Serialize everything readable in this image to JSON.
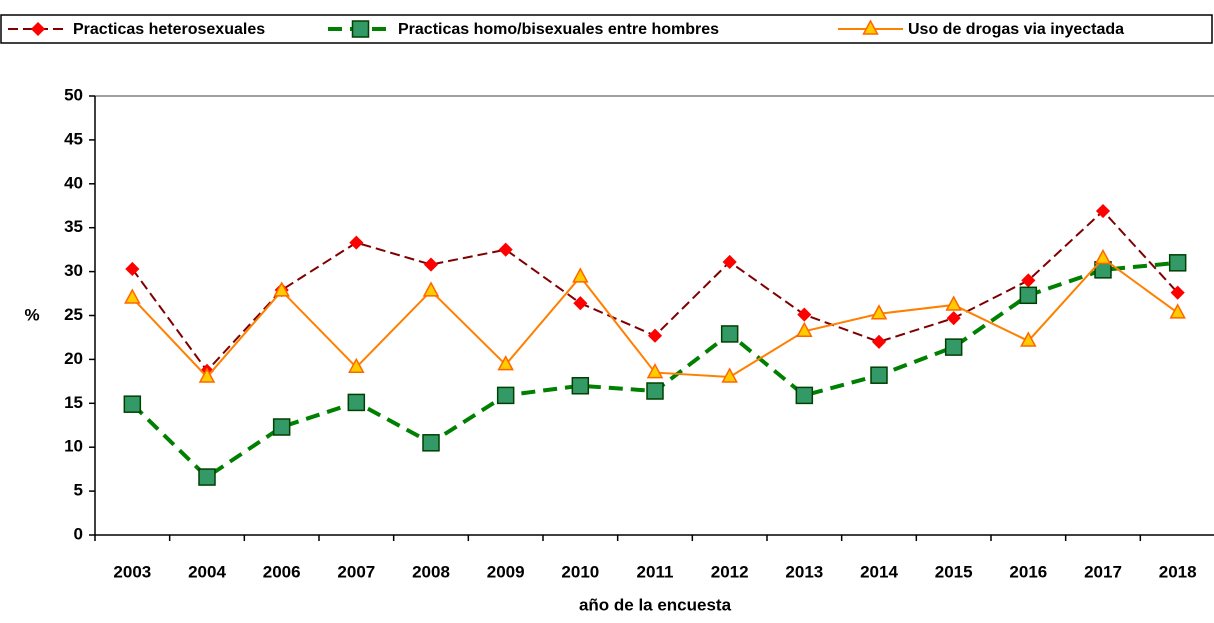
{
  "chart_data": {
    "type": "line",
    "x_label": "año de la encuesta",
    "y_label": "%",
    "categories": [
      "2003",
      "2004",
      "2006",
      "2007",
      "2008",
      "2009",
      "2010",
      "2011",
      "2012",
      "2013",
      "2014",
      "2015",
      "2016",
      "2017",
      "2018"
    ],
    "series": [
      {
        "name": "Practicas heterosexuales",
        "color": "#800000",
        "marker_color": "#ff0000",
        "marker": "diamond",
        "dash": true,
        "width": 2,
        "values": [
          30.3,
          18.7,
          27.9,
          33.3,
          30.8,
          32.5,
          26.4,
          22.7,
          31.1,
          25.1,
          22.0,
          24.7,
          29.0,
          36.9,
          27.6
        ]
      },
      {
        "name": "Practicas homo/bisexuales entre hombres",
        "color": "#008000",
        "marker_color": "#339966",
        "marker": "square",
        "dash": true,
        "width": 4,
        "values": [
          14.9,
          6.6,
          12.3,
          15.1,
          10.5,
          15.9,
          17.0,
          16.4,
          22.9,
          15.9,
          18.2,
          21.4,
          27.3,
          30.2,
          31.0
        ]
      },
      {
        "name": "Uso de drogas via inyectada",
        "color": "#ff8000",
        "marker_color": "#ffcc00",
        "marker": "triangle",
        "dash": false,
        "width": 2,
        "values": [
          27.0,
          18.0,
          27.8,
          19.1,
          27.8,
          19.4,
          29.4,
          18.5,
          18.0,
          23.2,
          25.2,
          26.2,
          22.1,
          31.5,
          25.3
        ]
      }
    ],
    "ylim": [
      0,
      50
    ],
    "yticks": [
      0,
      5,
      10,
      15,
      20,
      25,
      30,
      35,
      40,
      45,
      50
    ],
    "grid": false,
    "legend": "top"
  }
}
